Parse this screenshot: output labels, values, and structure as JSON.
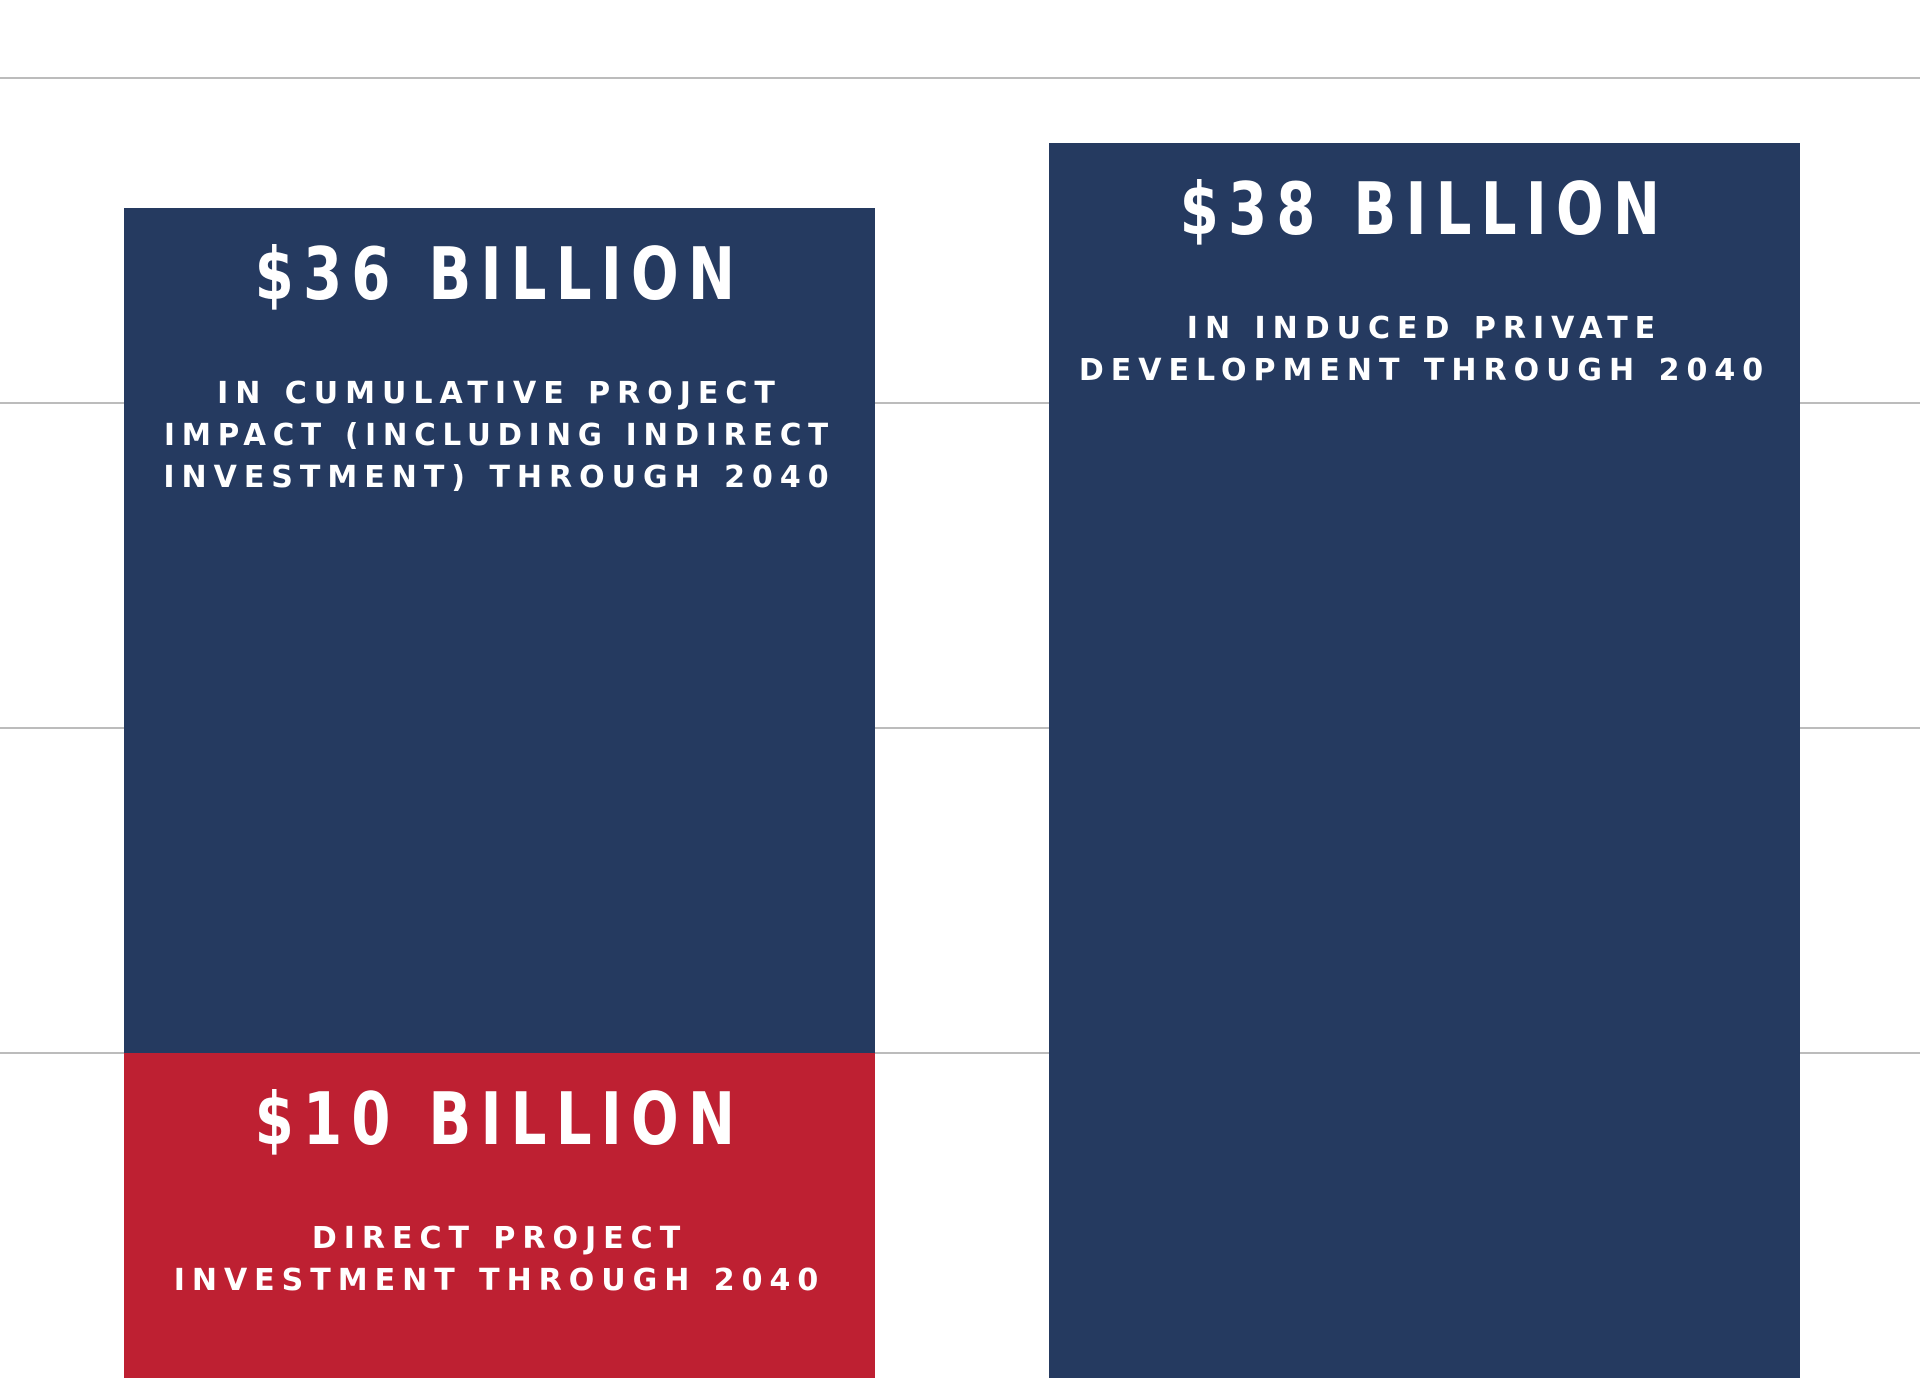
{
  "chart_data": {
    "type": "bar",
    "stacked": true,
    "grid": true,
    "gridlines": [
      0,
      10,
      20,
      30,
      40
    ],
    "ylim": [
      0,
      40
    ],
    "colors": {
      "navy": "#253A60",
      "red": "#BE2032",
      "grid": "#A6A6A6"
    },
    "bars": [
      {
        "segments": [
          {
            "value": 10,
            "color": "red",
            "label": "$10 BILLION",
            "desc": [
              "DIRECT PROJECT",
              "INVESTMENT THROUGH 2040"
            ]
          },
          {
            "value": 26,
            "total": 36,
            "color": "navy",
            "label": "$36 BILLION",
            "desc": [
              "IN CUMULATIVE PROJECT",
              "IMPACT (INCLUDING INDIRECT",
              "INVESTMENT) THROUGH 2040"
            ]
          }
        ]
      },
      {
        "segments": [
          {
            "value": 38,
            "total": 38,
            "color": "navy",
            "label": "$38 BILLION",
            "desc": [
              "IN INDUCED PRIVATE",
              "DEVELOPMENT THROUGH 2040"
            ]
          }
        ]
      }
    ]
  }
}
